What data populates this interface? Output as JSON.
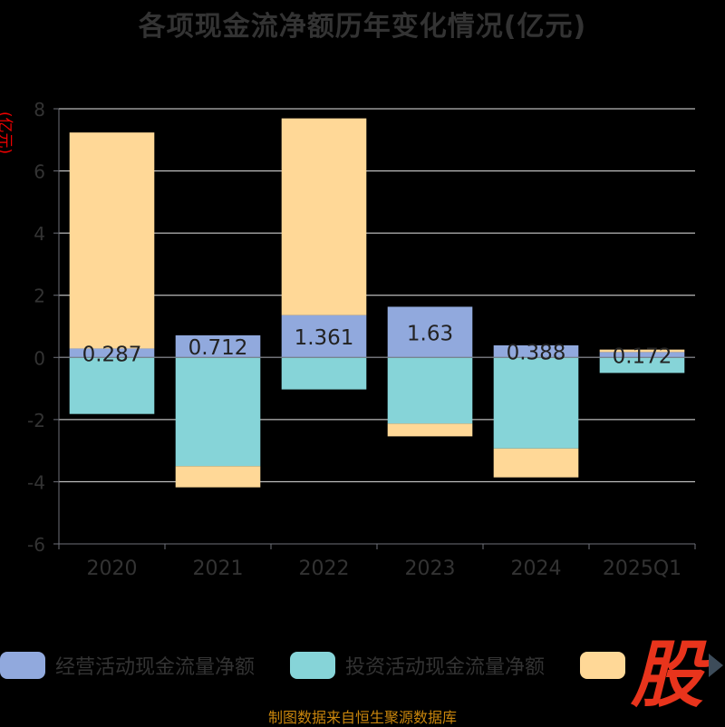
{
  "chart_data": {
    "type": "bar",
    "title": "各项现金流净额历年变化情况(亿元)",
    "ylabel": "(亿元)",
    "xlabel": "",
    "categories": [
      "2020",
      "2021",
      "2022",
      "2023",
      "2024",
      "2025Q1"
    ],
    "ylim": [
      -6,
      8
    ],
    "yticks": [
      8,
      6,
      4,
      2,
      0,
      -2,
      -4,
      -6
    ],
    "grid": true,
    "stacked": true,
    "legend_position": "bottom",
    "series": [
      {
        "name": "经营活动现金流量净额",
        "color": "#91a9dd",
        "values": [
          0.287,
          0.712,
          1.361,
          1.63,
          0.388,
          0.172
        ],
        "labels": [
          "0.287",
          "0.712",
          "1.361",
          "1.63",
          "0.388",
          "0.172"
        ]
      },
      {
        "name": "投资活动现金流量净额",
        "color": "#86d4d8",
        "values": [
          -1.82,
          -3.5,
          -1.03,
          -2.13,
          -2.93,
          -0.5
        ]
      },
      {
        "name": "",
        "color": "#ffd897",
        "values": [
          6.95,
          -0.68,
          6.33,
          -0.41,
          -0.93,
          0.08
        ]
      }
    ]
  },
  "source": "制图数据来自恒生聚源数据库",
  "logo_text": "股"
}
